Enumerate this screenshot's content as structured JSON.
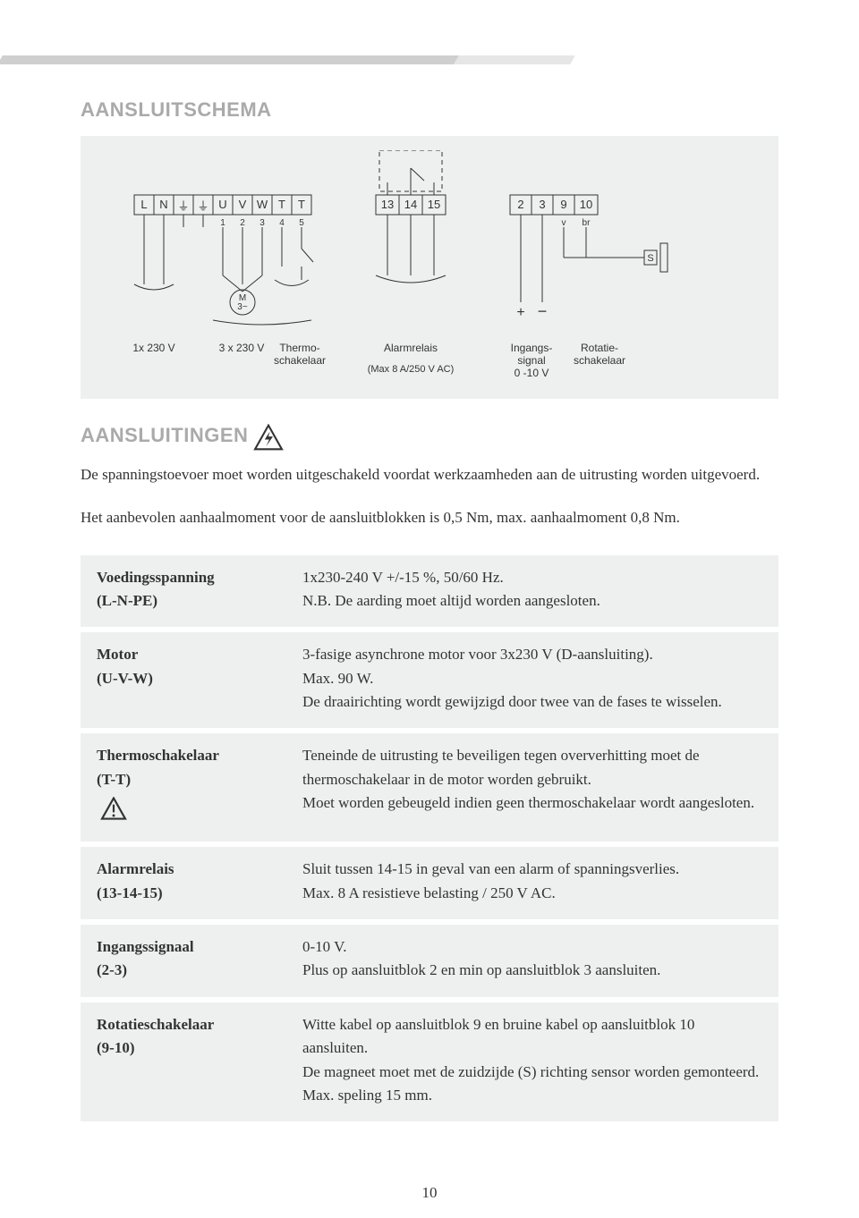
{
  "page_number": "10",
  "sections": {
    "schema_title": "AANSLUITSCHEMA",
    "connections_title": "AANSLUITINGEN"
  },
  "diagram": {
    "background": "#eef0f0",
    "terminals_top": {
      "left_block": [
        "L",
        "N",
        "⏚",
        "⏚",
        "U",
        "V",
        "W",
        "T",
        "T"
      ],
      "mid_block": [
        "13",
        "14",
        "15"
      ],
      "right_block": [
        "2",
        "3",
        "9",
        "10"
      ],
      "sub_left": [
        "1",
        "2",
        "3",
        "4",
        "5"
      ],
      "sub_right": [
        "v",
        "br"
      ],
      "motor_label_top": "M",
      "motor_label_bottom": "3~",
      "sensor_label": "S",
      "plus": "+",
      "minus": "−"
    },
    "bottom_labels": {
      "c1": "1x 230 V",
      "c2": "3 x 230 V",
      "c3a": "Thermo-",
      "c3b": "schakelaar",
      "c4a": "Alarmrelais",
      "c4b": "(Max 8 A/250 V AC)",
      "c5a": "Ingangs-",
      "c5b": "signal",
      "c5c": "0 -10 V",
      "c6a": "Rotatie-",
      "c6b": "schakelaar"
    }
  },
  "intro": {
    "p1": "De spanningstoevoer moet worden uitgeschakeld voordat werkzaamheden aan de uitrusting worden uitgevoerd.",
    "p2": "Het aanbevolen aanhaalmoment voor de aansluitblokken is 0,5 Nm, max. aanhaalmoment 0,8 Nm."
  },
  "table": [
    {
      "name": "Voedingsspanning",
      "paren": "(L-N-PE)",
      "desc": "1x230-240 V +/-15 %, 50/60 Hz.\nN.B. De aarding moet altijd worden aangesloten.",
      "warning": false
    },
    {
      "name": "Motor",
      "paren": "(U-V-W)",
      "desc": "3-fasige asynchrone motor voor 3x230 V (D-aansluiting).\nMax. 90 W.\nDe draairichting wordt gewijzigd door twee van de fases te wisselen.",
      "warning": false
    },
    {
      "name": "Thermoschakelaar",
      "paren": "(T-T)",
      "desc": "Teneinde de uitrusting te beveiligen tegen oververhitting moet de thermoschakelaar in de motor worden gebruikt.\nMoet worden gebeugeld indien geen thermoschakelaar wordt aangesloten.",
      "warning": true
    },
    {
      "name": "Alarmrelais",
      "paren": "(13-14-15)",
      "desc": "Sluit tussen 14-15 in geval van een alarm of spanningsverlies.\nMax. 8 A resistieve belasting / 250 V AC.",
      "warning": false
    },
    {
      "name": "Ingangssignaal",
      "paren": "(2-3)",
      "desc": "0-10 V.\nPlus op aansluitblok 2 en min op aansluitblok 3 aansluiten.",
      "warning": false
    },
    {
      "name": "Rotatieschakelaar",
      "paren": "(9-10)",
      "desc": "Witte kabel op aansluitblok 9 en bruine kabel op aansluitblok 10 aansluiten.\nDe magneet moet met de zuidzijde (S) richting sensor worden gemonteerd. Max. speling 15 mm.",
      "warning": false
    }
  ]
}
